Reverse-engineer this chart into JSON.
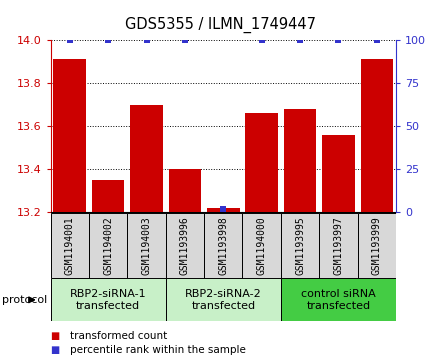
{
  "title": "GDS5355 / ILMN_1749447",
  "samples": [
    "GSM1194001",
    "GSM1194002",
    "GSM1194003",
    "GSM1193996",
    "GSM1193998",
    "GSM1194000",
    "GSM1193995",
    "GSM1193997",
    "GSM1193999"
  ],
  "bar_values": [
    13.91,
    13.35,
    13.7,
    13.4,
    13.22,
    13.66,
    13.68,
    13.56,
    13.91
  ],
  "percentile_values": [
    100,
    100,
    100,
    100,
    2,
    100,
    100,
    100,
    100
  ],
  "bar_color": "#CC0000",
  "percentile_color": "#3333CC",
  "ylim_left": [
    13.2,
    14.0
  ],
  "ylim_right": [
    0,
    100
  ],
  "yticks_left": [
    13.2,
    13.4,
    13.6,
    13.8,
    14.0
  ],
  "yticks_right": [
    0,
    25,
    50,
    75,
    100
  ],
  "groups": [
    {
      "label": "RBP2-siRNA-1\ntransfected",
      "indices": [
        0,
        1,
        2
      ],
      "color": "#c8f0c8"
    },
    {
      "label": "RBP2-siRNA-2\ntransfected",
      "indices": [
        3,
        4,
        5
      ],
      "color": "#c8f0c8"
    },
    {
      "label": "control siRNA\ntransfected",
      "indices": [
        6,
        7,
        8
      ],
      "color": "#44cc44"
    }
  ],
  "protocol_label": "protocol",
  "legend_items": [
    {
      "label": "transformed count",
      "color": "#CC0000"
    },
    {
      "label": "percentile rank within the sample",
      "color": "#3333CC"
    }
  ],
  "bar_width": 0.85,
  "label_box_color": "#d8d8d8",
  "left_axis_color": "#CC0000",
  "right_axis_color": "#3333CC"
}
